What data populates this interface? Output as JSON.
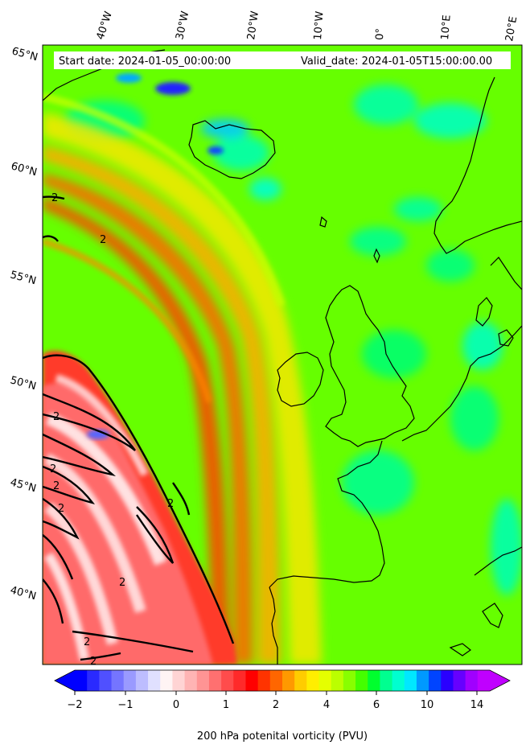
{
  "map": {
    "start_date_text": "Start date: 2024-01-05_00:00:00",
    "valid_date_text": "Valid_date: 2024-01-05T15:00:00.00",
    "longitude_labels": [
      "40°W",
      "30°W",
      "20°W",
      "10°W",
      "0°",
      "10°E",
      "20°E"
    ],
    "latitude_labels": [
      "65°N",
      "60°N",
      "55°N",
      "50°N",
      "45°N",
      "40°N"
    ],
    "contour_labels": [
      "2",
      "2",
      "2",
      "2",
      "2",
      "2",
      "2",
      "2",
      "2",
      "2"
    ],
    "background_color": "#66ff00",
    "coastline_color": "#000000"
  },
  "colorbar": {
    "title": "200 hPa potenital vorticity (PVU)",
    "tick_labels": [
      "−2",
      "−1",
      "0",
      "1",
      "2",
      "4",
      "6",
      "10",
      "14"
    ],
    "colors": [
      "#0000ff",
      "#2a2aff",
      "#5050ff",
      "#7575ff",
      "#9a9aff",
      "#bdbdff",
      "#e0e0ff",
      "#fff4f4",
      "#ffd4d4",
      "#ffb4b4",
      "#ff9494",
      "#ff7070",
      "#ff4c4c",
      "#ff2a2a",
      "#ff0000",
      "#ff3300",
      "#ff6600",
      "#ff9900",
      "#ffcc00",
      "#ffee00",
      "#e5ff00",
      "#bbff00",
      "#88ff00",
      "#44ff00",
      "#00ff2e",
      "#00ff90",
      "#00ffd0",
      "#00e8ff",
      "#0099ff",
      "#0044ff",
      "#2a00ff",
      "#6600ff",
      "#a000ff",
      "#c000ff"
    ]
  }
}
